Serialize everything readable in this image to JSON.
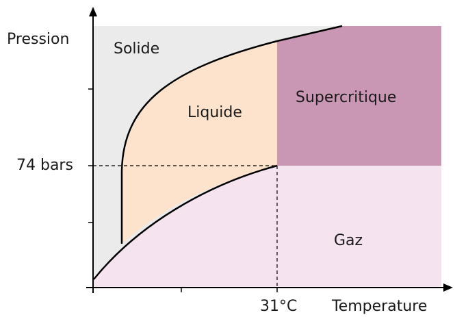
{
  "axes": {
    "y_label": "Pression",
    "x_label": "Temperature"
  },
  "regions": {
    "solid": "Solide",
    "liquid": "Liquide",
    "supercritical": "Supercritique",
    "gas": "Gaz"
  },
  "critical_point": {
    "pressure": "74 bars",
    "temperature": "31°C"
  }
}
